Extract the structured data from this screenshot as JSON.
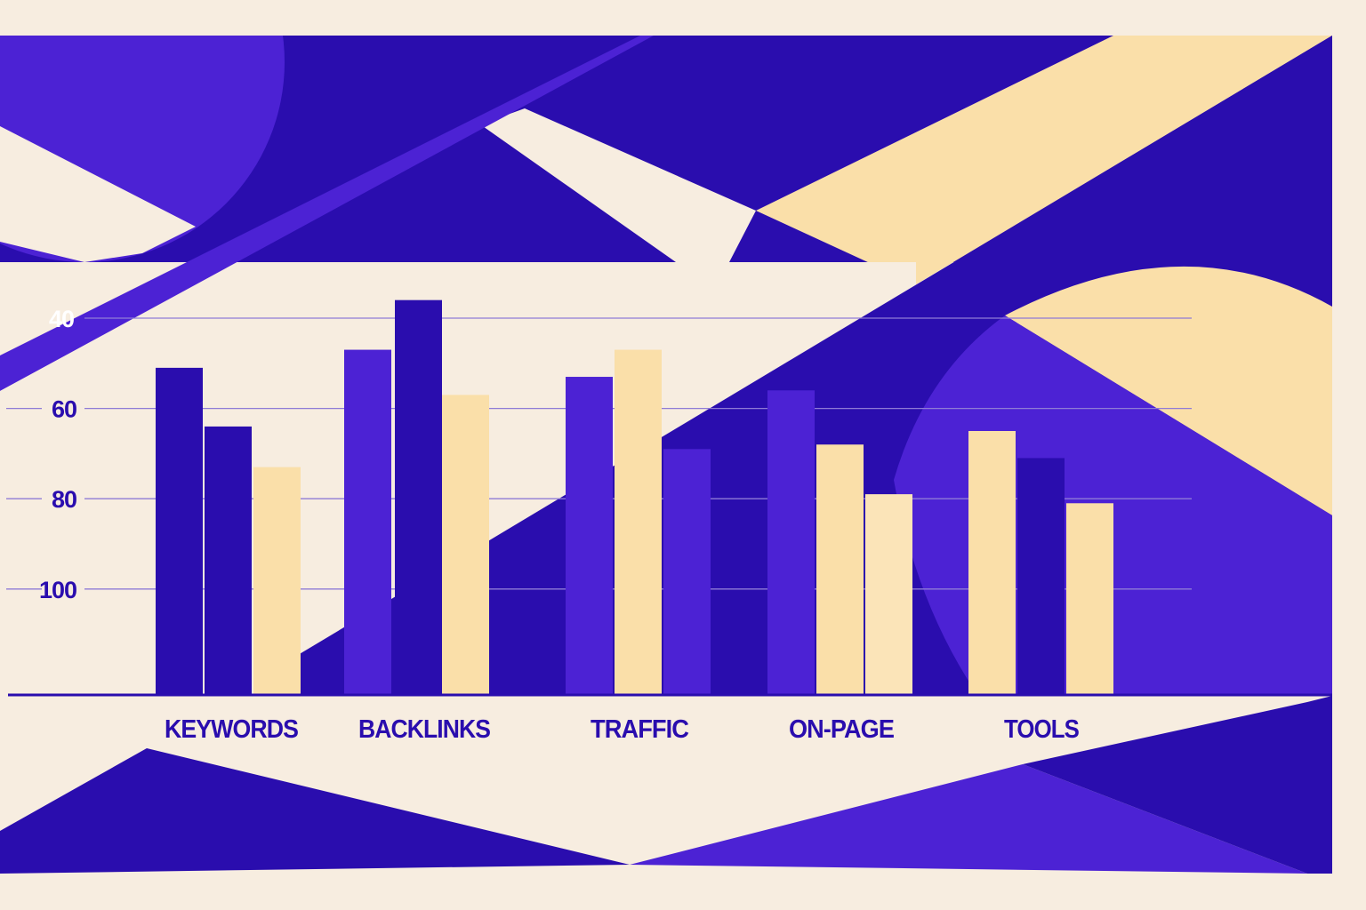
{
  "colors": {
    "background": "#F7EDE0",
    "indigo": "#2A0DAE",
    "violet": "#4C22D4",
    "cream": "#FADFA9",
    "light_cream": "#FBE4B8",
    "gridline": "#8F7BD6"
  },
  "chart_data": {
    "type": "bar",
    "title": "",
    "xlabel": "",
    "ylabel": "",
    "categories": [
      "KEYWORDS",
      "BACKLINKS",
      "TRAFFIC",
      "ON-PAGE",
      "TOOLS"
    ],
    "series": [
      {
        "name": "Series 1",
        "values": [
          89,
          93,
          87,
          84,
          75
        ]
      },
      {
        "name": "Series 2",
        "values": [
          76,
          104,
          93,
          72,
          69
        ]
      },
      {
        "name": "Series 3",
        "values": [
          67,
          83,
          71,
          61,
          59
        ]
      }
    ],
    "bar_colors": [
      [
        "#2A0DAE",
        "#2A0DAE",
        "#FADFA9"
      ],
      [
        "#4C22D4",
        "#2A0DAE",
        "#FADFA9"
      ],
      [
        "#4C22D4",
        "#FADFA9",
        "#4C22D4"
      ],
      [
        "#4C22D4",
        "#FADFA9",
        "#FBE4B8"
      ],
      [
        "#FADFA9",
        "#2A0DAE",
        "#FADFA9"
      ]
    ],
    "yticks": [
      40,
      60,
      80,
      100
    ],
    "ylim": [
      16.5,
      105
    ],
    "grid": true,
    "legend": "none"
  },
  "axis": {
    "ytick_labels": [
      "100",
      "80",
      "60",
      "40"
    ],
    "xtick_labels": [
      "KEYWORDS",
      "BACKLINKS",
      "TRAFFIC",
      "ON-PAGE",
      "TOOLS"
    ]
  }
}
